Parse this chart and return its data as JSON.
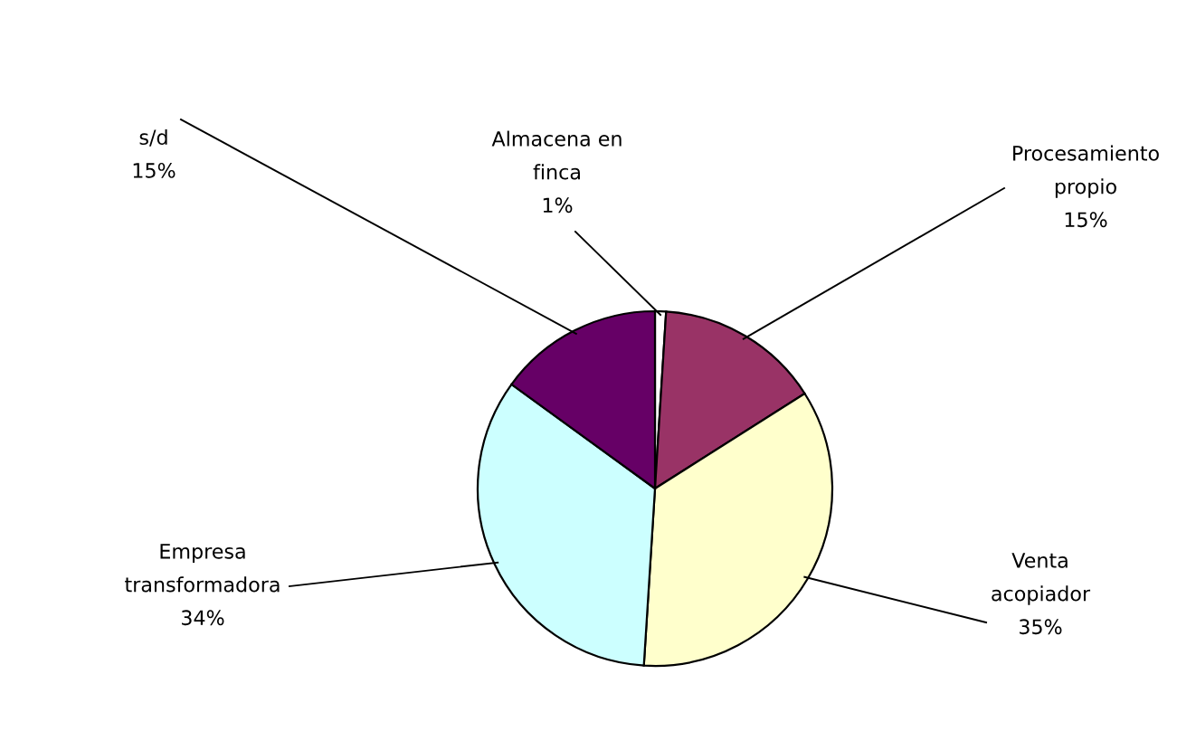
{
  "chart_data": {
    "type": "pie",
    "categories": [
      "Almacena en\nfinca",
      "Procesamiento\npropio",
      "Venta\nacopiador",
      "Empresa\ntransformadora",
      "s/d"
    ],
    "values": [
      1,
      15,
      35,
      34,
      15
    ],
    "colors": [
      "#ffffff",
      "#993366",
      "#ffffcc",
      "#ccffff",
      "#660066"
    ],
    "value_labels": [
      "1%",
      "15%",
      "35%",
      "34%",
      "15%"
    ],
    "legend": false
  }
}
